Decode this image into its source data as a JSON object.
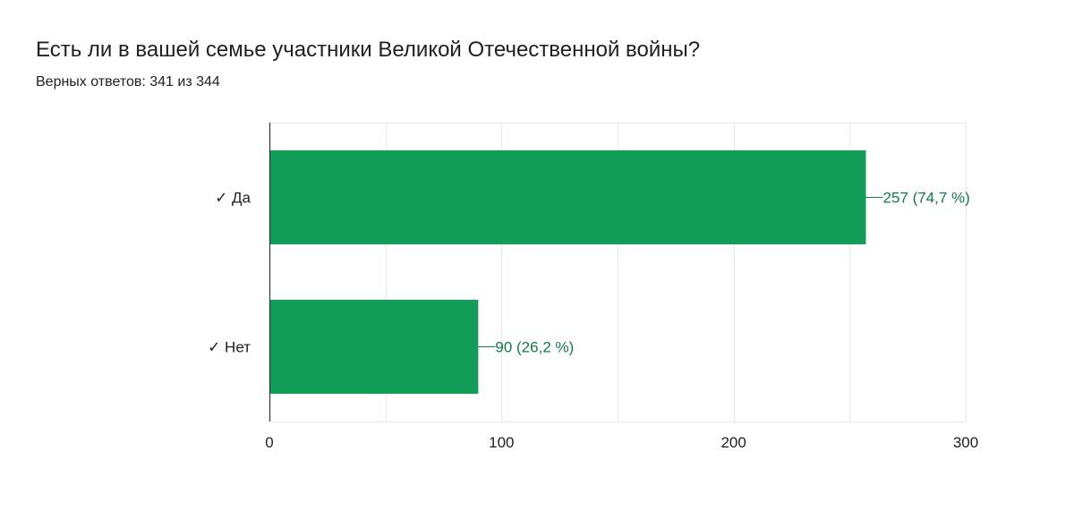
{
  "header": {
    "title": "Есть ли в вашей семье участники Великой Отечественной войны?",
    "subtitle": "Верных ответов: 341 из 344"
  },
  "colors": {
    "bar": "#129d58",
    "data_label": "#0f7d45",
    "grid": "#e8e8e8",
    "axis": "#333333",
    "text": "#202124"
  },
  "chart_data": {
    "type": "bar",
    "orientation": "horizontal",
    "categories": [
      "✓ Да",
      "✓ Нет"
    ],
    "values": [
      257,
      90
    ],
    "data_labels": [
      "257 (74,7 %)",
      "90 (26,2 %)"
    ],
    "xlim": [
      0,
      300
    ],
    "x_ticks": [
      0,
      100,
      200,
      300
    ],
    "grid": true,
    "legend": "none"
  }
}
